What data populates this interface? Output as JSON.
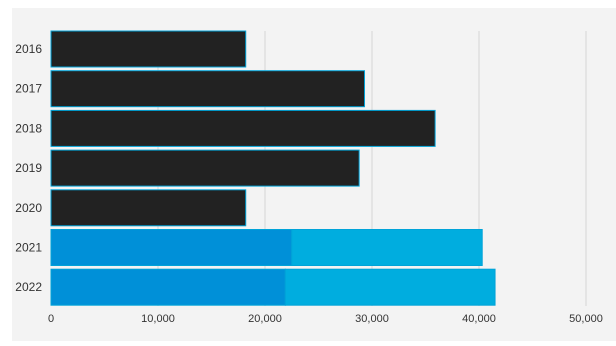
{
  "chart_data": {
    "type": "bar",
    "orientation": "horizontal",
    "stacked": true,
    "categories": [
      "2016",
      "2017",
      "2018",
      "2019",
      "2020",
      "2021",
      "2022"
    ],
    "series": [
      {
        "values": [
          18200,
          29300,
          35900,
          28800,
          18200,
          22500,
          21900
        ]
      },
      {
        "values": [
          0,
          0,
          0,
          0,
          0,
          17800,
          19600
        ]
      }
    ],
    "bar_colors": [
      [
        "#222222",
        "#222222",
        "#222222",
        "#222222",
        "#222222",
        "#0090d8",
        "#0090d8"
      ],
      [
        "#222222",
        "#222222",
        "#222222",
        "#222222",
        "#222222",
        "#00addf",
        "#00addf"
      ]
    ],
    "xlim": [
      0,
      50000
    ],
    "xticks": [
      0,
      10000,
      20000,
      30000,
      40000,
      50000
    ],
    "xtick_labels": [
      "0",
      "10,000",
      "20,000",
      "30,000",
      "40,000",
      "50,000"
    ],
    "grid": true,
    "legend": "none",
    "title": "",
    "xlabel": "",
    "ylabel": "",
    "colors": {
      "plot_background": "#f3f3f3",
      "gridline": "#d4d4d4",
      "bar_outline": "#00a3d8",
      "text": "#333333"
    }
  }
}
